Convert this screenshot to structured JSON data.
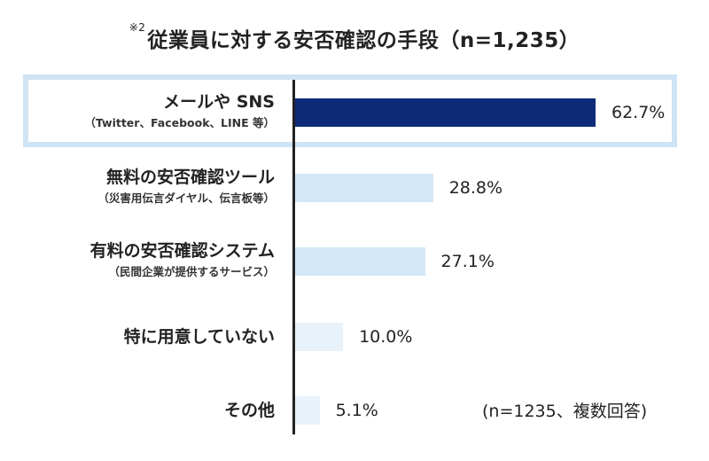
{
  "chart_data": {
    "type": "bar",
    "orientation": "horizontal",
    "title_prefix": "※2",
    "title": "従業員に対する安否確認の手段（n=1,235）",
    "note": "(n=1235、複数回答)",
    "unit": "%",
    "xlim": [
      0,
      100
    ],
    "categories": [
      {
        "main": "メールや SNS",
        "sub": "（Twitter、Facebook、LINE 等）"
      },
      {
        "main": "無料の安否確認ツール",
        "sub": "（災害用伝言ダイヤル、伝言板等）"
      },
      {
        "main": "有料の安否確認システム",
        "sub": "（民間企業が提供するサービス）"
      },
      {
        "main": "特に用意していない",
        "sub": ""
      },
      {
        "main": "その他",
        "sub": ""
      }
    ],
    "values": [
      62.7,
      28.8,
      27.1,
      10.0,
      5.1
    ],
    "value_labels": [
      "62.7%",
      "28.8%",
      "27.1%",
      "10.0%",
      "5.1%"
    ],
    "highlight_index": 0,
    "colors": [
      "#0d2b78",
      "#d3e7f6",
      "#d3e7f6",
      "#e7f2fb",
      "#e7f2fb"
    ],
    "highlight_border": "#cfe4f4"
  }
}
